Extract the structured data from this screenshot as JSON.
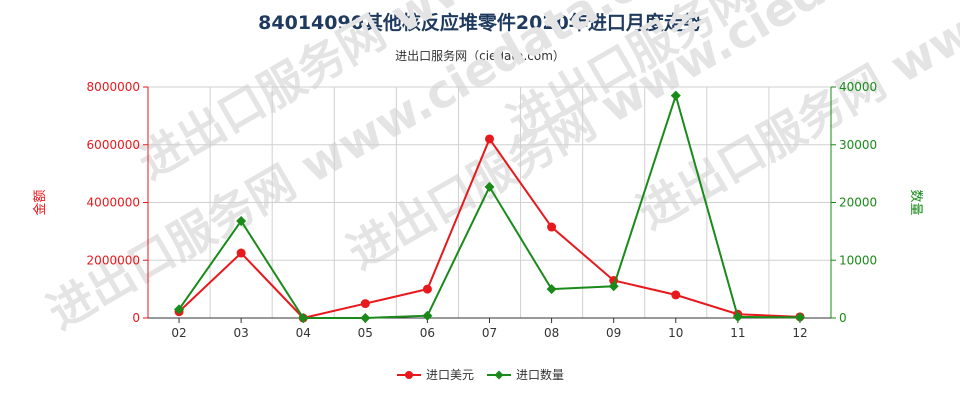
{
  "page": {
    "title": "84014090其他核反应堆零件2020年进口月度走势",
    "subtitle": "进出口服务网（ciedata.com）",
    "watermark": "进出口服务网 www.ciedata.com"
  },
  "chart_data": {
    "type": "line",
    "title": "84014090其他核反应堆零件2020年进口月度走势",
    "subtitle": "进出口服务网（ciedata.com）",
    "categories": [
      "02",
      "03",
      "04",
      "05",
      "06",
      "07",
      "08",
      "09",
      "10",
      "11",
      "12"
    ],
    "y_left": {
      "label": "金额",
      "range": [
        0,
        8000000
      ],
      "ticks": [
        0,
        2000000,
        4000000,
        6000000,
        8000000
      ],
      "tick_labels": [
        "0",
        "2000000",
        "4000000",
        "6000000",
        "8000000"
      ],
      "color": "#e8191d"
    },
    "y_right": {
      "label": "数量",
      "range": [
        0,
        40000
      ],
      "ticks": [
        0,
        10000,
        20000,
        30000,
        40000
      ],
      "tick_labels": [
        "0",
        "10000",
        "20000",
        "30000",
        "40000"
      ],
      "color": "#1a8a1a"
    },
    "series": [
      {
        "name": "进口美元",
        "axis": "left",
        "color": "#e8191d",
        "marker": "circle",
        "values": [
          220000,
          2250000,
          0,
          500000,
          1000000,
          6200000,
          3150000,
          1300000,
          800000,
          130000,
          40000
        ]
      },
      {
        "name": "进口数量",
        "axis": "right",
        "color": "#1a8a1a",
        "marker": "diamond",
        "values": [
          1500,
          16800,
          0,
          0,
          400,
          22700,
          5000,
          5500,
          38500,
          200,
          100
        ]
      }
    ],
    "grid": true,
    "legend_position": "bottom-center"
  }
}
